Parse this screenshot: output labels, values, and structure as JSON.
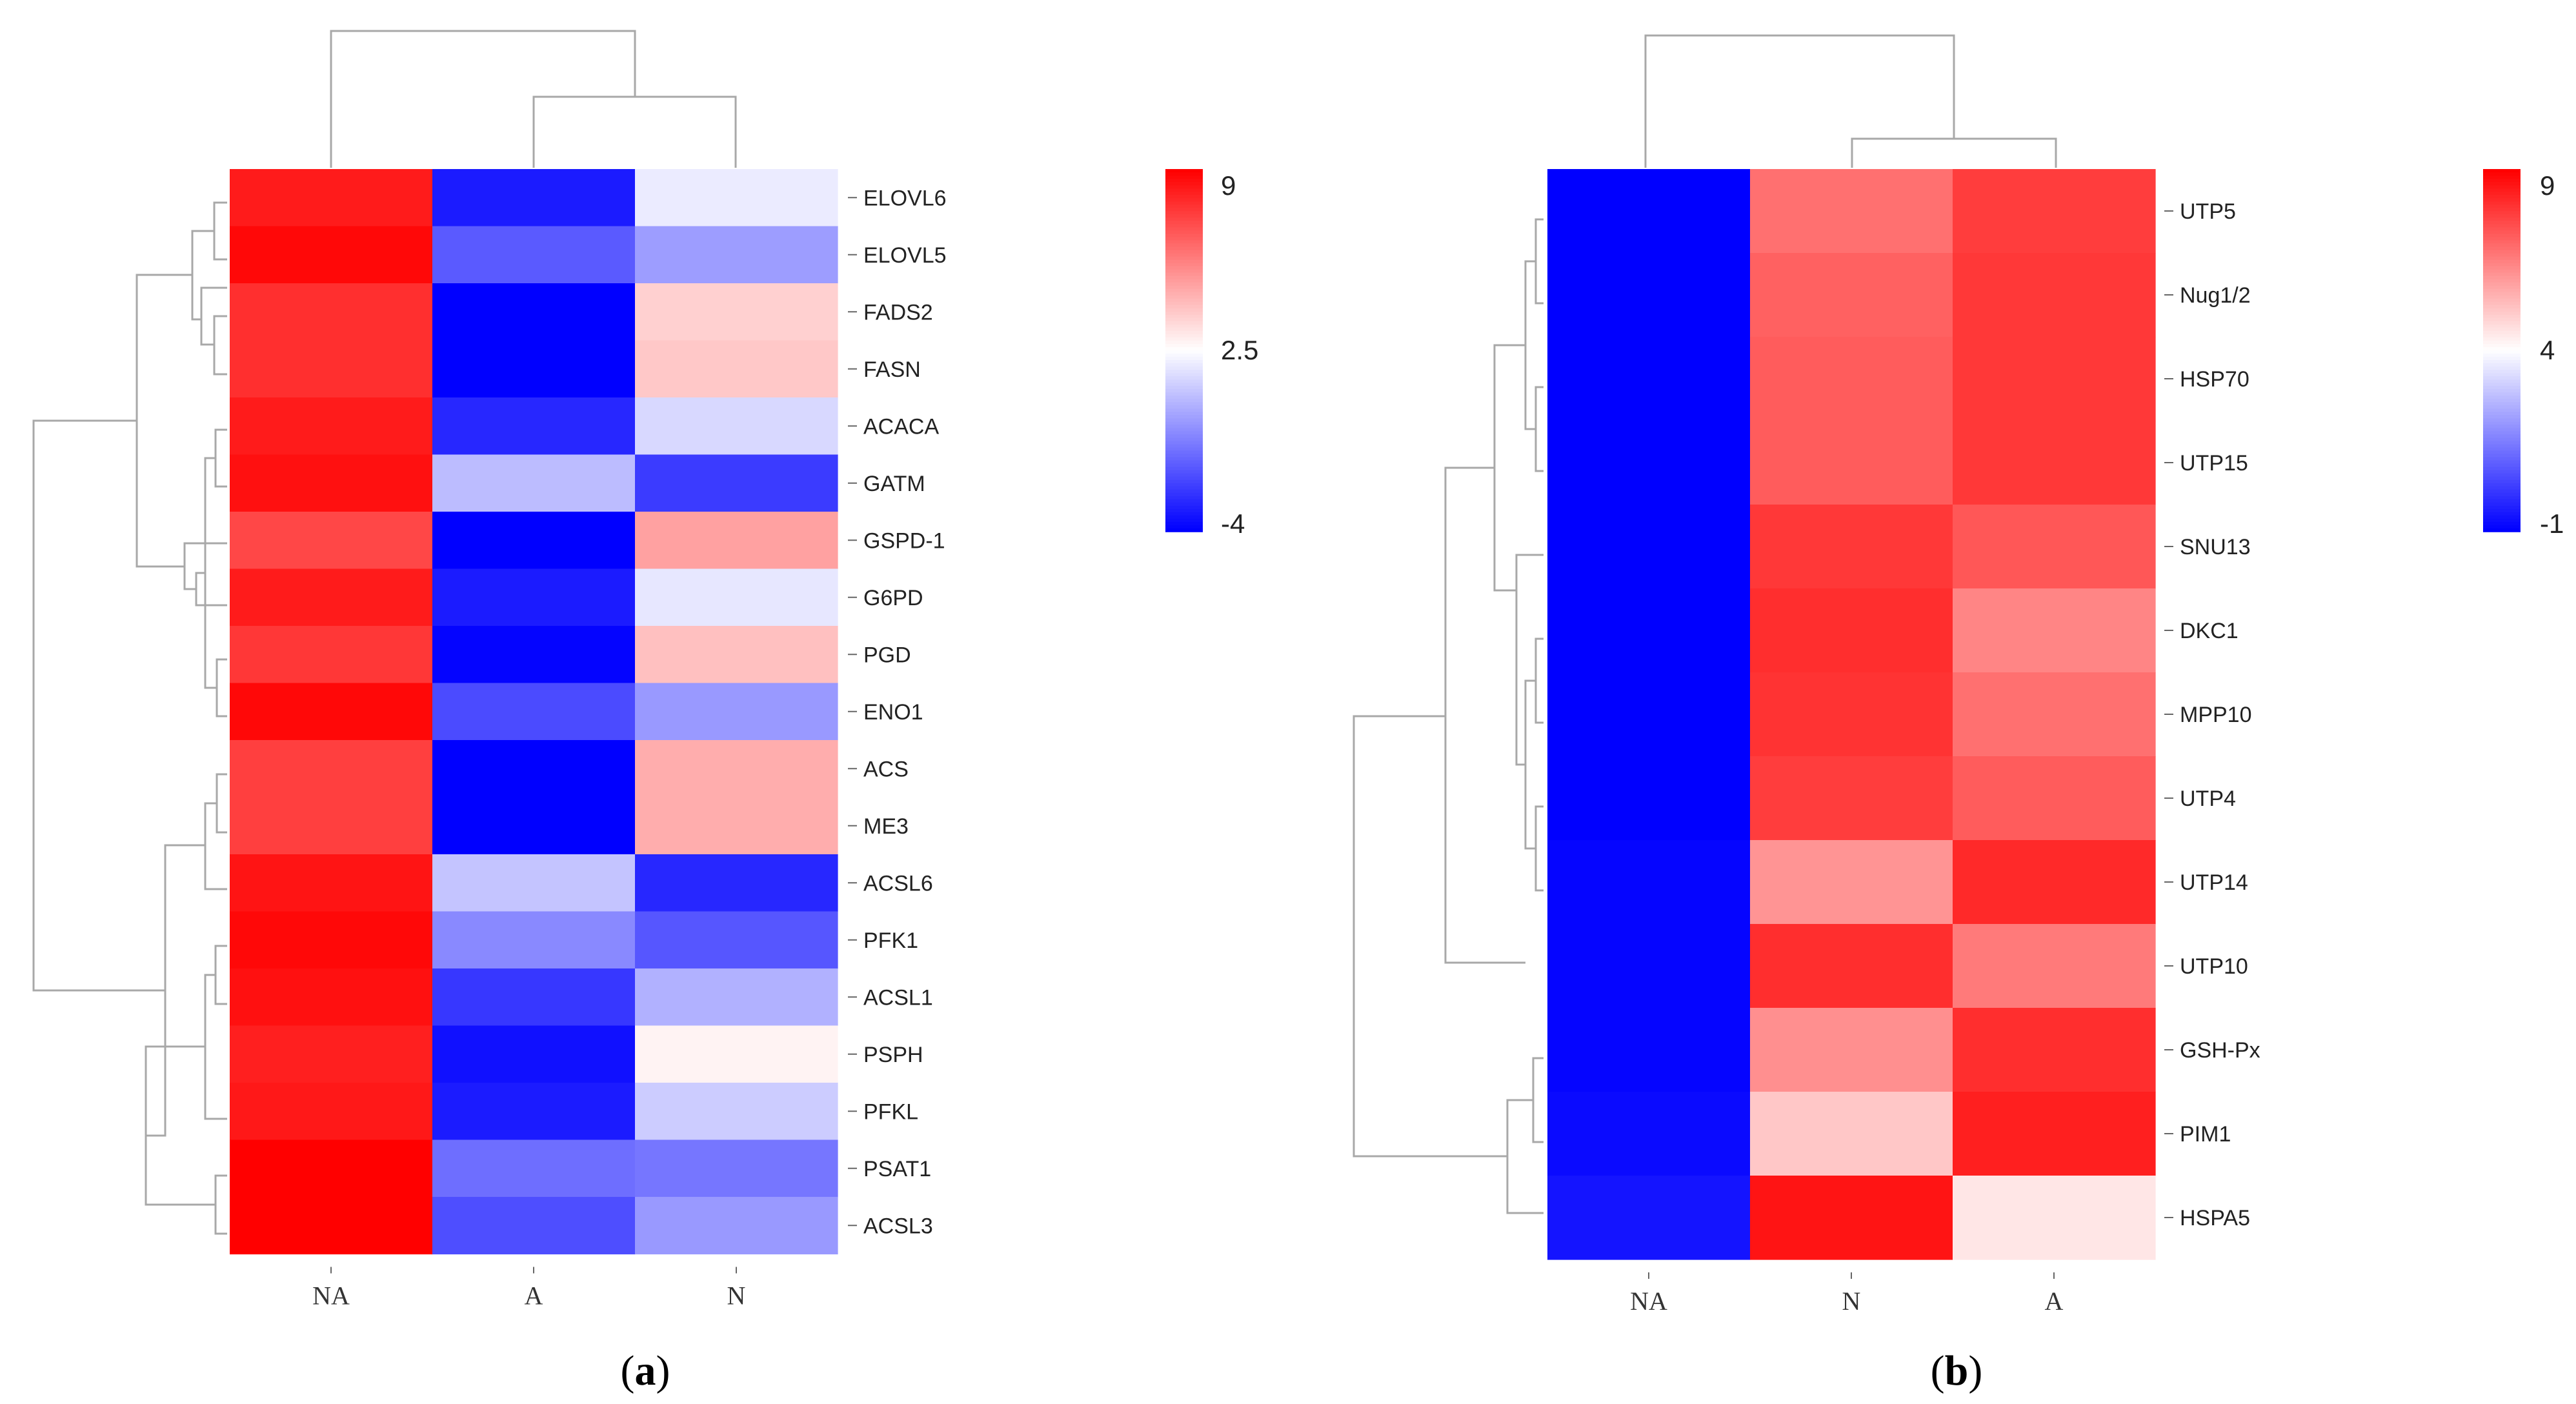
{
  "chart_data": [
    {
      "type": "heatmap",
      "panel": "a",
      "columns": [
        "NA",
        "A",
        "N"
      ],
      "rows": [
        "ELOVL6",
        "ELOVL5",
        "FADS2",
        "FASN",
        "ACACA",
        "GATM",
        "GSPD-1",
        "G6PD",
        "PGD",
        "ENO1",
        "ACS",
        "ME3",
        "ACSL6",
        "PFK1",
        "ACSL1",
        "PSPH",
        "PFKL",
        "PSAT1",
        "ACSL3"
      ],
      "values": [
        [
          8.3,
          -3.3,
          2.0
        ],
        [
          8.8,
          -1.7,
          0.0
        ],
        [
          7.8,
          -4.0,
          3.7
        ],
        [
          7.8,
          -4.0,
          3.9
        ],
        [
          8.3,
          -3.0,
          1.5
        ],
        [
          8.6,
          0.8,
          -2.5
        ],
        [
          7.2,
          -4.0,
          4.9
        ],
        [
          8.3,
          -3.3,
          1.9
        ],
        [
          7.6,
          -3.9,
          4.1
        ],
        [
          8.8,
          -2.1,
          -0.1
        ],
        [
          7.4,
          -4.0,
          4.6
        ],
        [
          7.4,
          -4.0,
          4.6
        ],
        [
          8.5,
          1.0,
          -3.0
        ],
        [
          8.8,
          -0.5,
          -1.8
        ],
        [
          8.6,
          -2.6,
          0.5
        ],
        [
          8.2,
          -3.6,
          2.8
        ],
        [
          8.4,
          -3.3,
          1.2
        ],
        [
          9.0,
          -1.2,
          -1.0
        ],
        [
          9.0,
          -2.0,
          -0.1
        ]
      ],
      "colorbar": {
        "min": -4,
        "mid": 2.5,
        "max": 9,
        "ticks": [
          "9",
          "2.5",
          "-4"
        ],
        "low_color": "#0000ff",
        "mid_color": "#ffffff",
        "high_color": "#ff0000"
      },
      "label": "(a)"
    },
    {
      "type": "heatmap",
      "panel": "b",
      "columns": [
        "NA",
        "N",
        "A"
      ],
      "rows": [
        "UTP5",
        "Nug1/2",
        "HSP70",
        "UTP15",
        "SNU13",
        "DKC1",
        "MPP10",
        "UTP4",
        "UTP14",
        "UTP10",
        "GSH-Px",
        "PIM1",
        "HSPA5"
      ],
      "values": [
        [
          -1.0,
          6.8,
          7.8
        ],
        [
          -1.0,
          7.1,
          7.9
        ],
        [
          -1.0,
          7.2,
          7.9
        ],
        [
          -1.0,
          7.2,
          7.9
        ],
        [
          -1.0,
          7.9,
          7.3
        ],
        [
          -1.0,
          8.1,
          6.4
        ],
        [
          -1.0,
          8.0,
          6.8
        ],
        [
          -1.0,
          7.8,
          7.2
        ],
        [
          -0.9,
          6.1,
          8.2
        ],
        [
          -0.9,
          8.1,
          6.6
        ],
        [
          -0.9,
          6.2,
          8.1
        ],
        [
          -0.8,
          5.1,
          8.4
        ],
        [
          -0.6,
          8.6,
          4.5
        ]
      ],
      "colorbar": {
        "min": -1,
        "mid": 4,
        "max": 9,
        "ticks": [
          "9",
          "4",
          "-1"
        ],
        "low_color": "#0000ff",
        "mid_color": "#ffffff",
        "high_color": "#ff0000"
      },
      "label": "(b)"
    }
  ]
}
